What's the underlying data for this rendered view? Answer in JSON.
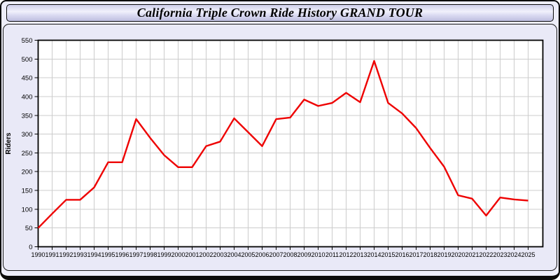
{
  "header": {
    "title": "California Triple Crown Ride History GRAND TOUR"
  },
  "colors": {
    "line": "#ee0000",
    "grid": "#cccccc",
    "plot_bg": "#ffffff",
    "plot_border": "#000000",
    "panel_bg": "#e9e9f7",
    "titlebar_gradient_top": "#cfcfeb",
    "titlebar_gradient_bottom": "#bebee0",
    "label_text": "#000000"
  },
  "chart_data": {
    "type": "line",
    "title": "California Triple Crown Ride History GRAND TOUR",
    "xlabel": "",
    "ylabel": "Riders",
    "series_name": "Riders",
    "grid": true,
    "legend": "none",
    "ylim": [
      0,
      550
    ],
    "ytick_step": 50,
    "yticks": [
      0,
      50,
      100,
      150,
      200,
      250,
      300,
      350,
      400,
      450,
      500,
      550
    ],
    "x": [
      1990,
      1991,
      1992,
      1993,
      1994,
      1995,
      1996,
      1997,
      1998,
      1999,
      2000,
      2001,
      2002,
      2003,
      2004,
      2005,
      2006,
      2007,
      2008,
      2009,
      2010,
      2011,
      2012,
      2013,
      2014,
      2015,
      2016,
      2017,
      2018,
      2019,
      2020,
      2021,
      2022,
      2023,
      2024,
      2025
    ],
    "values": [
      50,
      88,
      125,
      125,
      158,
      225,
      225,
      340,
      290,
      244,
      212,
      212,
      268,
      280,
      342,
      305,
      268,
      340,
      344,
      392,
      375,
      383,
      410,
      385,
      495,
      383,
      355,
      316,
      263,
      213,
      137,
      128,
      83,
      131,
      126,
      123
    ]
  }
}
